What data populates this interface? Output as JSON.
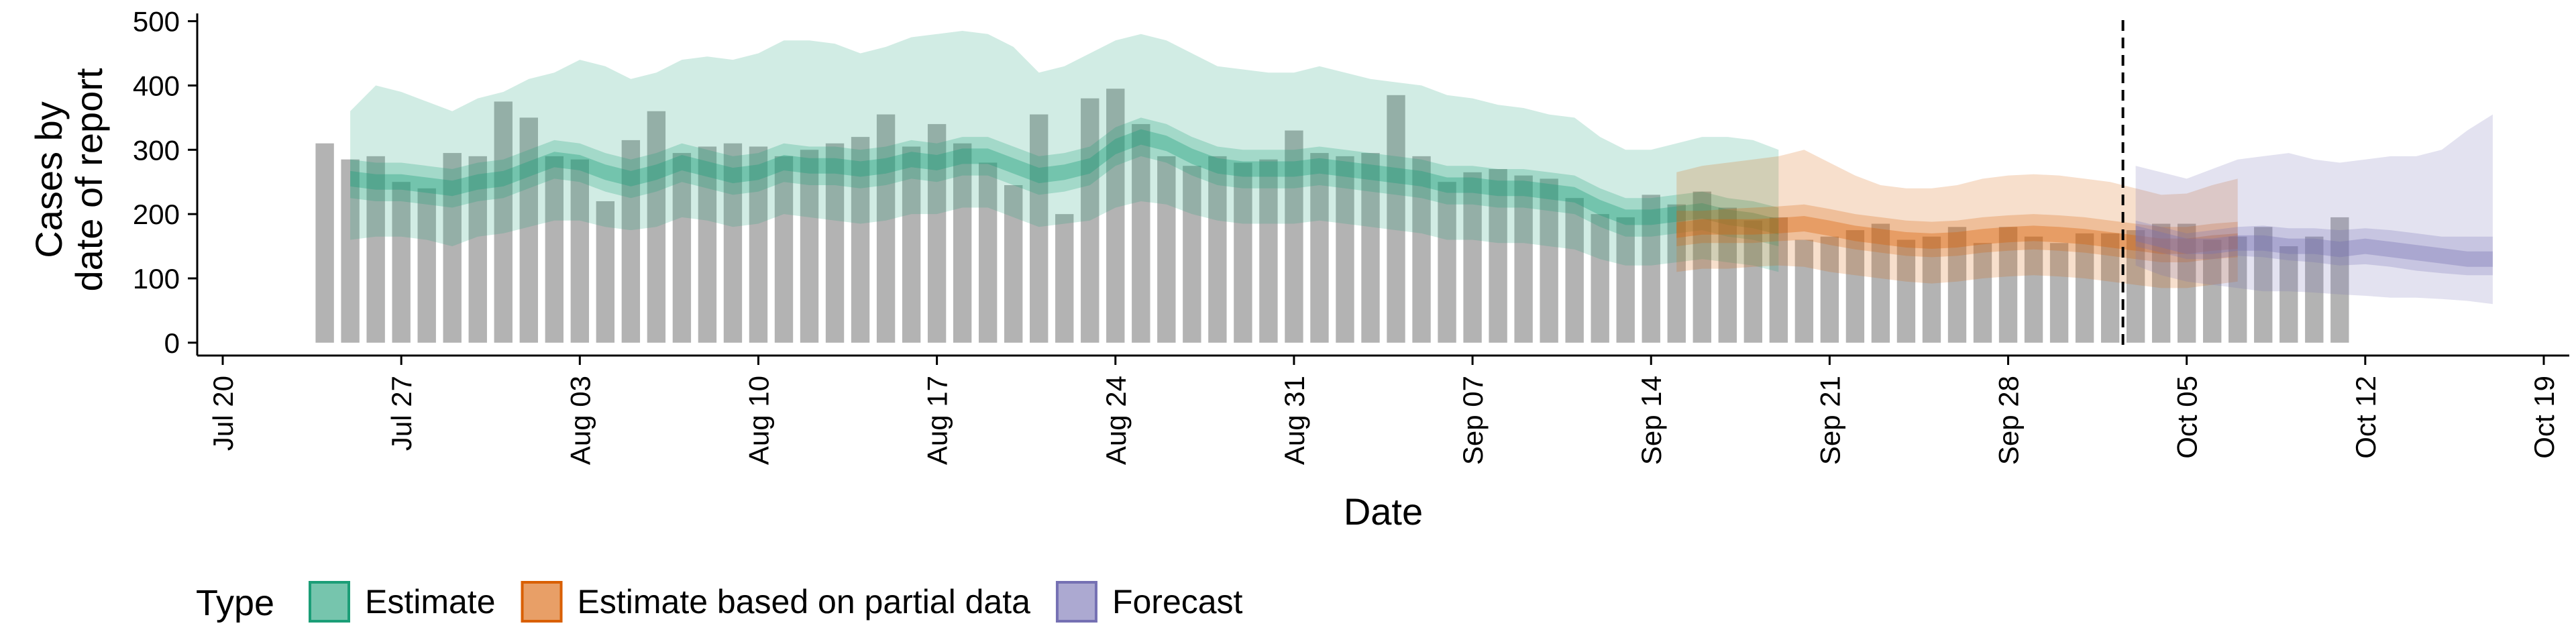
{
  "chart_data": {
    "type": "bar",
    "xlabel": "Date",
    "ylabel_lines": [
      "Cases by",
      "date of report"
    ],
    "x_range": [
      "2020-07-19",
      "2020-10-20"
    ],
    "ylim": [
      -20,
      510
    ],
    "y_ticks": [
      0,
      100,
      200,
      300,
      400,
      500
    ],
    "x_ticks": [
      {
        "date": "2020-07-20",
        "label": "Jul 20"
      },
      {
        "date": "2020-07-27",
        "label": "Jul 27"
      },
      {
        "date": "2020-08-03",
        "label": "Aug 03"
      },
      {
        "date": "2020-08-10",
        "label": "Aug 10"
      },
      {
        "date": "2020-08-17",
        "label": "Aug 17"
      },
      {
        "date": "2020-08-24",
        "label": "Aug 24"
      },
      {
        "date": "2020-08-31",
        "label": "Aug 31"
      },
      {
        "date": "2020-09-07",
        "label": "Sep 07"
      },
      {
        "date": "2020-09-14",
        "label": "Sep 14"
      },
      {
        "date": "2020-09-21",
        "label": "Sep 21"
      },
      {
        "date": "2020-09-28",
        "label": "Sep 28"
      },
      {
        "date": "2020-10-05",
        "label": "Oct 05"
      },
      {
        "date": "2020-10-12",
        "label": "Oct 12"
      },
      {
        "date": "2020-10-19",
        "label": "Oct 19"
      }
    ],
    "grid": false,
    "bar_color": "#b3b3b3",
    "bar_start_date": "2020-07-24",
    "observed_cases": [
      310,
      285,
      290,
      250,
      240,
      295,
      290,
      375,
      350,
      290,
      285,
      220,
      315,
      360,
      295,
      305,
      310,
      305,
      290,
      300,
      310,
      320,
      355,
      305,
      340,
      310,
      280,
      245,
      355,
      200,
      380,
      395,
      340,
      290,
      275,
      290,
      280,
      285,
      330,
      295,
      290,
      295,
      385,
      290,
      250,
      265,
      270,
      260,
      255,
      225,
      200,
      195,
      230,
      215,
      235,
      210,
      190,
      195,
      160,
      165,
      175,
      185,
      160,
      165,
      180,
      155,
      180,
      165,
      155,
      170,
      170,
      175,
      185,
      185,
      160,
      165,
      180,
      150,
      165,
      195
    ],
    "forecast_cutoff": "2020-10-02",
    "series": [
      {
        "name": "Estimate",
        "color": "#1b9e77",
        "start_date": "2020-07-25",
        "median": [
          255,
          250,
          250,
          245,
          240,
          250,
          255,
          270,
          285,
          280,
          265,
          255,
          265,
          280,
          270,
          260,
          265,
          280,
          275,
          275,
          270,
          275,
          285,
          280,
          290,
          290,
          275,
          260,
          265,
          275,
          305,
          320,
          310,
          290,
          275,
          270,
          270,
          270,
          275,
          270,
          265,
          260,
          255,
          245,
          245,
          240,
          240,
          235,
          230,
          210,
          195,
          195,
          200,
          205,
          195,
          190,
          180
        ],
        "inner_band": [
          [
            225,
            285
          ],
          [
            220,
            280
          ],
          [
            220,
            280
          ],
          [
            215,
            275
          ],
          [
            210,
            270
          ],
          [
            220,
            280
          ],
          [
            225,
            285
          ],
          [
            240,
            300
          ],
          [
            255,
            315
          ],
          [
            250,
            310
          ],
          [
            235,
            295
          ],
          [
            225,
            285
          ],
          [
            235,
            295
          ],
          [
            250,
            310
          ],
          [
            240,
            300
          ],
          [
            230,
            290
          ],
          [
            235,
            295
          ],
          [
            250,
            310
          ],
          [
            245,
            305
          ],
          [
            245,
            305
          ],
          [
            240,
            300
          ],
          [
            245,
            305
          ],
          [
            255,
            315
          ],
          [
            250,
            310
          ],
          [
            260,
            320
          ],
          [
            260,
            320
          ],
          [
            245,
            305
          ],
          [
            230,
            290
          ],
          [
            235,
            295
          ],
          [
            245,
            305
          ],
          [
            275,
            335
          ],
          [
            290,
            350
          ],
          [
            280,
            340
          ],
          [
            260,
            320
          ],
          [
            245,
            305
          ],
          [
            240,
            300
          ],
          [
            240,
            300
          ],
          [
            240,
            300
          ],
          [
            245,
            305
          ],
          [
            240,
            300
          ],
          [
            235,
            295
          ],
          [
            230,
            290
          ],
          [
            225,
            285
          ],
          [
            215,
            275
          ],
          [
            215,
            275
          ],
          [
            210,
            270
          ],
          [
            210,
            270
          ],
          [
            205,
            265
          ],
          [
            200,
            260
          ],
          [
            180,
            240
          ],
          [
            165,
            225
          ],
          [
            165,
            225
          ],
          [
            170,
            230
          ],
          [
            175,
            235
          ],
          [
            165,
            225
          ],
          [
            160,
            220
          ],
          [
            150,
            210
          ]
        ],
        "outer_band": [
          [
            160,
            360
          ],
          [
            165,
            400
          ],
          [
            165,
            390
          ],
          [
            160,
            375
          ],
          [
            150,
            360
          ],
          [
            165,
            380
          ],
          [
            170,
            390
          ],
          [
            180,
            410
          ],
          [
            190,
            420
          ],
          [
            190,
            440
          ],
          [
            180,
            430
          ],
          [
            175,
            410
          ],
          [
            180,
            420
          ],
          [
            195,
            440
          ],
          [
            190,
            445
          ],
          [
            180,
            440
          ],
          [
            185,
            450
          ],
          [
            200,
            470
          ],
          [
            195,
            470
          ],
          [
            190,
            465
          ],
          [
            185,
            450
          ],
          [
            190,
            460
          ],
          [
            200,
            475
          ],
          [
            200,
            480
          ],
          [
            210,
            485
          ],
          [
            210,
            480
          ],
          [
            195,
            460
          ],
          [
            180,
            420
          ],
          [
            185,
            430
          ],
          [
            190,
            450
          ],
          [
            210,
            470
          ],
          [
            220,
            480
          ],
          [
            215,
            470
          ],
          [
            200,
            450
          ],
          [
            190,
            430
          ],
          [
            185,
            425
          ],
          [
            185,
            420
          ],
          [
            185,
            420
          ],
          [
            190,
            430
          ],
          [
            185,
            420
          ],
          [
            180,
            410
          ],
          [
            175,
            405
          ],
          [
            170,
            400
          ],
          [
            160,
            385
          ],
          [
            160,
            380
          ],
          [
            155,
            370
          ],
          [
            155,
            365
          ],
          [
            150,
            355
          ],
          [
            145,
            350
          ],
          [
            130,
            320
          ],
          [
            120,
            300
          ],
          [
            120,
            300
          ],
          [
            125,
            310
          ],
          [
            130,
            320
          ],
          [
            125,
            320
          ],
          [
            120,
            315
          ],
          [
            110,
            300
          ]
        ]
      },
      {
        "name": "Estimate based on partial data",
        "color": "#d95f02",
        "start_date": "2020-09-15",
        "median": [
          175,
          180,
          180,
          180,
          182,
          185,
          178,
          170,
          165,
          160,
          158,
          160,
          165,
          168,
          170,
          168,
          165,
          160,
          155,
          150,
          150,
          155,
          158
        ],
        "inner_band": [
          [
            150,
            205
          ],
          [
            155,
            205
          ],
          [
            155,
            208
          ],
          [
            155,
            210
          ],
          [
            158,
            212
          ],
          [
            160,
            215
          ],
          [
            152,
            208
          ],
          [
            145,
            200
          ],
          [
            140,
            195
          ],
          [
            135,
            190
          ],
          [
            133,
            188
          ],
          [
            135,
            190
          ],
          [
            140,
            195
          ],
          [
            143,
            198
          ],
          [
            145,
            200
          ],
          [
            143,
            198
          ],
          [
            140,
            195
          ],
          [
            135,
            190
          ],
          [
            130,
            185
          ],
          [
            125,
            180
          ],
          [
            125,
            180
          ],
          [
            130,
            185
          ],
          [
            133,
            188
          ]
        ],
        "outer_band": [
          [
            110,
            265
          ],
          [
            115,
            275
          ],
          [
            115,
            280
          ],
          [
            118,
            285
          ],
          [
            120,
            290
          ],
          [
            118,
            300
          ],
          [
            110,
            280
          ],
          [
            105,
            260
          ],
          [
            100,
            245
          ],
          [
            95,
            240
          ],
          [
            92,
            240
          ],
          [
            95,
            245
          ],
          [
            100,
            255
          ],
          [
            103,
            260
          ],
          [
            105,
            262
          ],
          [
            103,
            260
          ],
          [
            100,
            255
          ],
          [
            95,
            250
          ],
          [
            90,
            240
          ],
          [
            85,
            230
          ],
          [
            85,
            232
          ],
          [
            90,
            245
          ],
          [
            95,
            255
          ]
        ]
      },
      {
        "name": "Forecast",
        "color": "#7570b3",
        "start_date": "2020-10-03",
        "median": [
          170,
          160,
          150,
          150,
          155,
          155,
          150,
          150,
          145,
          150,
          145,
          140,
          135,
          130,
          130
        ],
        "inner_band": [
          [
            150,
            190
          ],
          [
            140,
            180
          ],
          [
            130,
            170
          ],
          [
            130,
            175
          ],
          [
            135,
            180
          ],
          [
            133,
            182
          ],
          [
            128,
            178
          ],
          [
            125,
            178
          ],
          [
            120,
            175
          ],
          [
            122,
            178
          ],
          [
            118,
            175
          ],
          [
            112,
            170
          ],
          [
            108,
            165
          ],
          [
            105,
            165
          ],
          [
            105,
            165
          ]
        ],
        "outer_band": [
          [
            120,
            275
          ],
          [
            105,
            265
          ],
          [
            95,
            255
          ],
          [
            90,
            270
          ],
          [
            85,
            285
          ],
          [
            80,
            290
          ],
          [
            80,
            295
          ],
          [
            78,
            285
          ],
          [
            75,
            280
          ],
          [
            73,
            285
          ],
          [
            70,
            290
          ],
          [
            70,
            290
          ],
          [
            68,
            300
          ],
          [
            65,
            330
          ],
          [
            60,
            355
          ]
        ]
      }
    ],
    "legend": {
      "title": "Type",
      "placement": "bottom",
      "entries": [
        "Estimate",
        "Estimate based on partial data",
        "Forecast"
      ]
    }
  }
}
